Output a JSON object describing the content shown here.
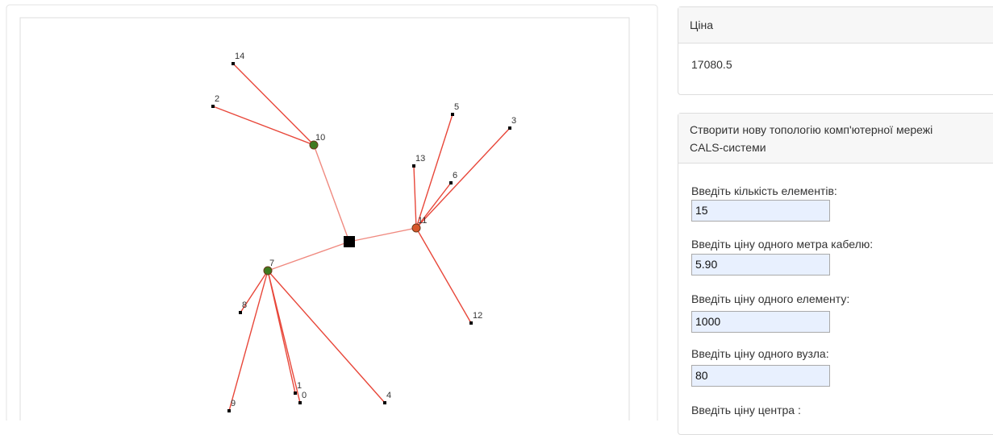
{
  "diagram": {
    "nodes": [
      "0",
      "1",
      "2",
      "3",
      "4",
      "5",
      "6",
      "7",
      "8",
      "9",
      "10",
      "11",
      "12",
      "13",
      "14"
    ]
  },
  "price_card": {
    "title": "Ціна",
    "value": "17080.5"
  },
  "form": {
    "title": "Створити нову топологію комп'ютерної мережі CALS-системи",
    "fields": [
      {
        "label": "Введіть кількість елементів:",
        "value": "15"
      },
      {
        "label": "Введіть ціну одного метра кабелю:",
        "value": "5.90"
      },
      {
        "label": "Введіть ціну одного елементу:",
        "value": "1000"
      },
      {
        "label": "Введіть ціну одного вузла:",
        "value": "80"
      },
      {
        "label": "Введіть ціну центра :"
      }
    ]
  }
}
